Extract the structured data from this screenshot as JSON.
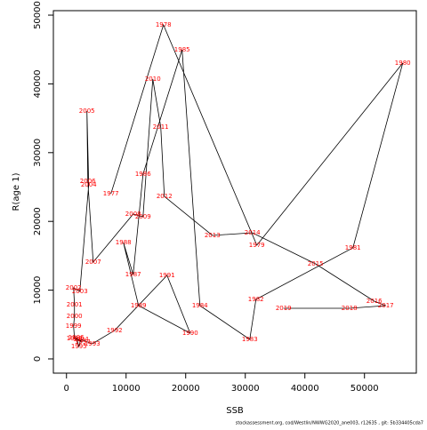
{
  "chart_data": {
    "type": "line",
    "xlabel": "SSB",
    "ylabel": "R(age 1)",
    "footnote": "stockassessment.org, cod/Westlin/NWWG2020_ane003, r12635 , git: 5b334405cda7",
    "labels": [
      "1977",
      "1978",
      "1979",
      "1980",
      "1981",
      "1982",
      "1983",
      "1984",
      "1985",
      "1986",
      "1987",
      "1988",
      "1989",
      "1990",
      "1991",
      "1992",
      "1993",
      "1994",
      "1995",
      "1996",
      "1997",
      "1998",
      "1999",
      "2000",
      "2001",
      "2002",
      "2003",
      "2004",
      "2005",
      "2006",
      "2007",
      "2008",
      "2009",
      "2010",
      "2011",
      "2012",
      "2013",
      "2014",
      "2015",
      "2016",
      "2017",
      "2018",
      "2019"
    ],
    "x": [
      7460,
      16270,
      31940,
      56420,
      48060,
      31790,
      30750,
      22390,
      19400,
      12840,
      11190,
      9550,
      12090,
      20750,
      16870,
      8060,
      4330,
      2390,
      2090,
      1640,
      2690,
      1340,
      1190,
      1340,
      1340,
      1190,
      2240,
      3730,
      3430,
      3580,
      4480,
      11190,
      12840,
      14480,
      15820,
      16420,
      24480,
      31190,
      41790,
      51640,
      53580,
      47460,
      36420
    ],
    "values": [
      24030,
      48580,
      16540,
      43020,
      16150,
      8660,
      2840,
      7750,
      44960,
      26870,
      12270,
      16920,
      7750,
      3750,
      12140,
      4130,
      2200,
      2840,
      1810,
      3100,
      2450,
      2970,
      4780,
      6200,
      7880,
      10340,
      9820,
      25320,
      36050,
      25840,
      14080,
      21060,
      20670,
      40700,
      33720,
      23640,
      17960,
      18350,
      13820,
      8400,
      7750,
      7360,
      7360
    ],
    "line_color": "#000000",
    "label_color": "#ff0000",
    "xlim": [
      -2200,
      58700
    ],
    "ylim": [
      -2070,
      50650
    ],
    "xticks": [
      0,
      10000,
      20000,
      30000,
      40000,
      50000
    ],
    "yticks": [
      0,
      10000,
      20000,
      30000,
      40000,
      50000
    ]
  }
}
